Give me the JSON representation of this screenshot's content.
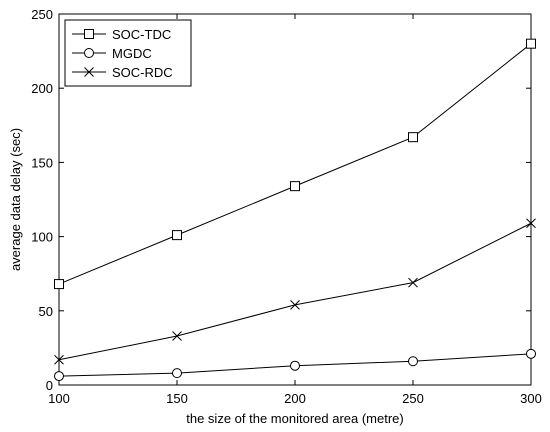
{
  "chart_data": {
    "type": "line",
    "title": "",
    "xlabel": "the size of the monitored area (metre)",
    "ylabel": "average data delay (sec)",
    "x": [
      100,
      150,
      200,
      250,
      300
    ],
    "xlim": [
      100,
      300
    ],
    "ylim": [
      0,
      250
    ],
    "xticks": [
      100,
      150,
      200,
      250,
      300
    ],
    "yticks": [
      0,
      50,
      100,
      150,
      200,
      250
    ],
    "grid": false,
    "legend_position": "top-left",
    "series": [
      {
        "name": "SOC-TDC",
        "marker": "square",
        "values": [
          68,
          101,
          134,
          167,
          230
        ]
      },
      {
        "name": "MGDC",
        "marker": "circle",
        "values": [
          6,
          8,
          13,
          16,
          21
        ]
      },
      {
        "name": "SOC-RDC",
        "marker": "x",
        "values": [
          17,
          33,
          54,
          69,
          109
        ]
      }
    ]
  }
}
